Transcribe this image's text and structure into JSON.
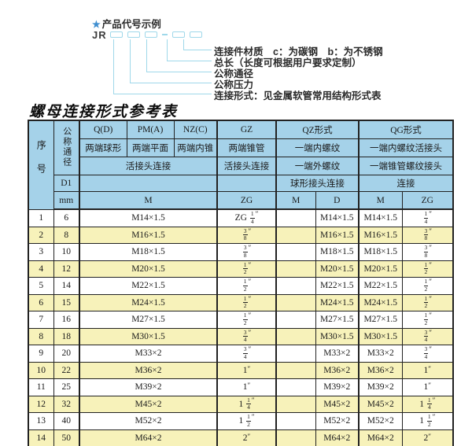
{
  "code_example": {
    "star": "★",
    "heading": "产品代号示例",
    "prefix": "JR",
    "labels": [
      "连接件材质　c：为碳钢　b：为不锈钢",
      "总长（长度可根据用户要求定制）",
      "公称通径",
      "公称压力",
      "连接形式：见金属软管常用结构形式表"
    ]
  },
  "table": {
    "title": "螺母连接形式参考表",
    "header": {
      "serial": "序号",
      "nominal_diameter": "公称通径",
      "d1": "D1",
      "unit_mm": "mm",
      "forms": [
        "Q(D)",
        "PM(A)",
        "NZ(C)",
        "GZ",
        "QZ形式",
        "QG形式"
      ],
      "descriptions": [
        "两端球形",
        "两端平面",
        "两端内锥",
        "两端锥管",
        "一端内螺纹",
        "一端内螺纹活接头"
      ],
      "connections": [
        "活接头连接",
        "活接头连接",
        "一端外螺纹",
        "一端锥管螺纹接头"
      ],
      "sub_connections": [
        "球形接头连接",
        "连接"
      ],
      "units": [
        "M",
        "ZG",
        "M",
        "D",
        "M",
        "ZG"
      ]
    },
    "rows": [
      {
        "no": "1",
        "dn": "6",
        "m": "M14×1.5",
        "zg": "ZG 1/4″",
        "qz_m": "",
        "qz_d": "M14×1.5",
        "qg_m": "M14×1.5",
        "qg_zg": "1/4″"
      },
      {
        "no": "2",
        "dn": "8",
        "m": "M16×1.5",
        "zg": "3/8″",
        "qz_m": "",
        "qz_d": "M16×1.5",
        "qg_m": "M16×1.5",
        "qg_zg": "3/8″"
      },
      {
        "no": "3",
        "dn": "10",
        "m": "M18×1.5",
        "zg": "3/8″",
        "qz_m": "",
        "qz_d": "M18×1.5",
        "qg_m": "M18×1.5",
        "qg_zg": "3/8″"
      },
      {
        "no": "4",
        "dn": "12",
        "m": "M20×1.5",
        "zg": "1/2″",
        "qz_m": "",
        "qz_d": "M20×1.5",
        "qg_m": "M20×1.5",
        "qg_zg": "1/2″"
      },
      {
        "no": "5",
        "dn": "14",
        "m": "M22×1.5",
        "zg": "1/2″",
        "qz_m": "",
        "qz_d": "M22×1.5",
        "qg_m": "M22×1.5",
        "qg_zg": "1/2″"
      },
      {
        "no": "6",
        "dn": "15",
        "m": "M24×1.5",
        "zg": "1/2″",
        "qz_m": "",
        "qz_d": "M24×1.5",
        "qg_m": "M24×1.5",
        "qg_zg": "1/2″"
      },
      {
        "no": "7",
        "dn": "16",
        "m": "M27×1.5",
        "zg": "1/2″",
        "qz_m": "",
        "qz_d": "M27×1.5",
        "qg_m": "M27×1.5",
        "qg_zg": "1/2″"
      },
      {
        "no": "8",
        "dn": "18",
        "m": "M30×1.5",
        "zg": "3/4″",
        "qz_m": "",
        "qz_d": "M30×1.5",
        "qg_m": "M30×1.5",
        "qg_zg": "3/4″"
      },
      {
        "no": "9",
        "dn": "20",
        "m": "M33×2",
        "zg": "3/4″",
        "qz_m": "",
        "qz_d": "M33×2",
        "qg_m": "M33×2",
        "qg_zg": "3/4″"
      },
      {
        "no": "10",
        "dn": "22",
        "m": "M36×2",
        "zg": "1″",
        "qz_m": "",
        "qz_d": "M36×2",
        "qg_m": "M36×2",
        "qg_zg": "1″"
      },
      {
        "no": "11",
        "dn": "25",
        "m": "M39×2",
        "zg": "1″",
        "qz_m": "",
        "qz_d": "M39×2",
        "qg_m": "M39×2",
        "qg_zg": "1″"
      },
      {
        "no": "12",
        "dn": "32",
        "m": "M45×2",
        "zg": "1 1/4″",
        "qz_m": "",
        "qz_d": "M45×2",
        "qg_m": "M45×2",
        "qg_zg": "1 1/4″"
      },
      {
        "no": "13",
        "dn": "40",
        "m": "M52×2",
        "zg": "1 1/2″",
        "qz_m": "",
        "qz_d": "M52×2",
        "qg_m": "M52×2",
        "qg_zg": "1 1/2″"
      },
      {
        "no": "14",
        "dn": "50",
        "m": "M64×2",
        "zg": "2″",
        "qz_m": "",
        "qz_d": "M64×2",
        "qg_m": "M64×2",
        "qg_zg": "2″"
      }
    ]
  },
  "colors": {
    "header_bg": "#a5d2e9",
    "row_alt_bg": "#f7f2ba",
    "connector_cyan": "#9fd8ea",
    "star_blue": "#3e8ed0"
  }
}
